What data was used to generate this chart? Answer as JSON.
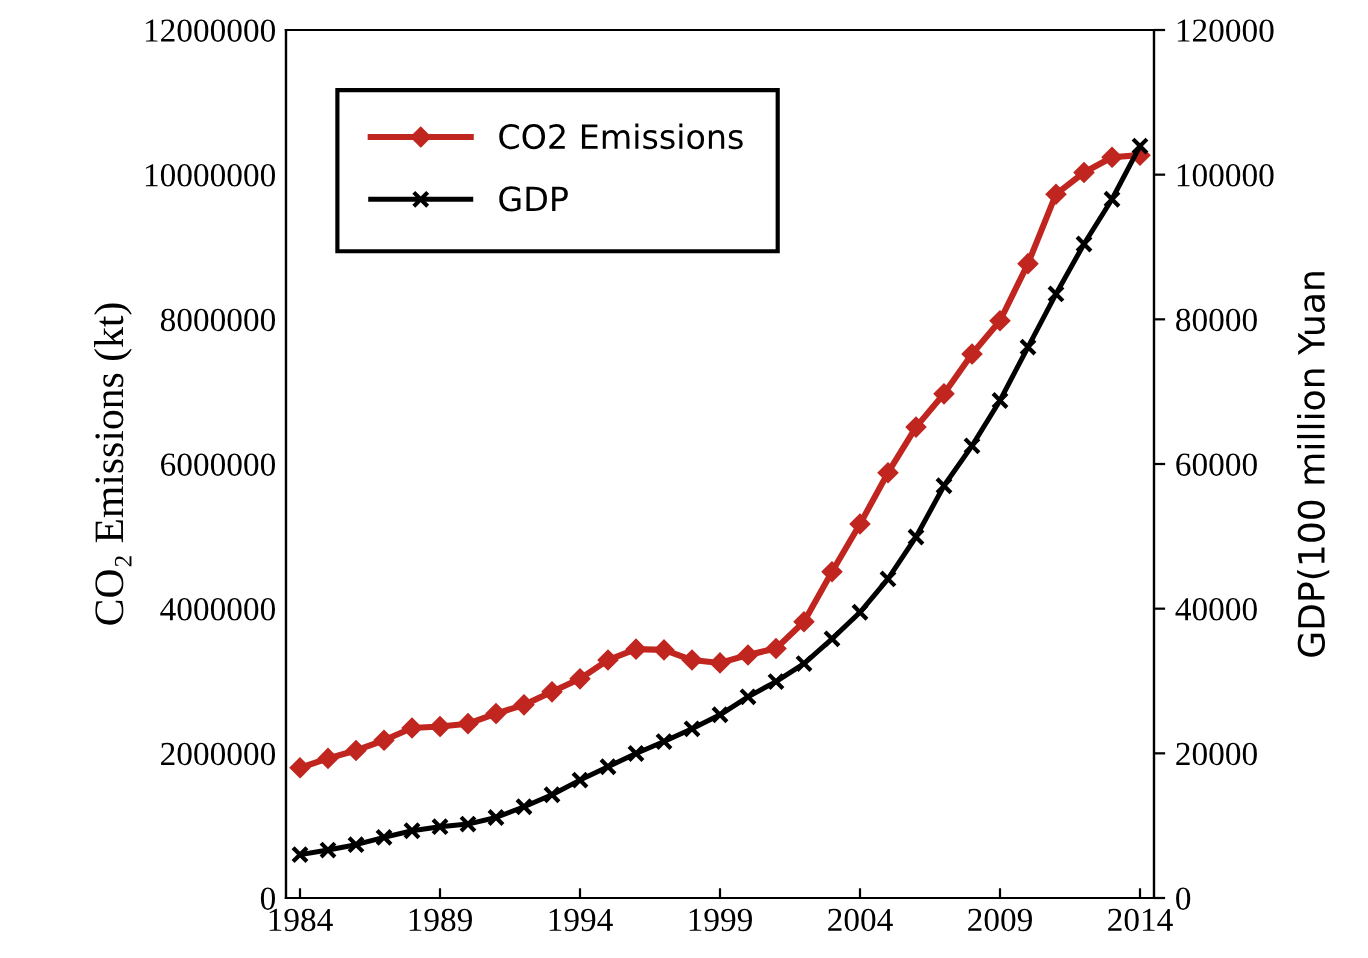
{
  "chart_data": {
    "type": "line",
    "ylabel": "CO₂ Emissions (kt)",
    "y2label": "GDP(100 million Yuan",
    "x": [
      1984,
      1985,
      1986,
      1987,
      1988,
      1989,
      1990,
      1991,
      1992,
      1993,
      1994,
      1995,
      1996,
      1997,
      1998,
      1999,
      2000,
      2001,
      2002,
      2003,
      2004,
      2005,
      2006,
      2007,
      2008,
      2009,
      2010,
      2011,
      2012,
      2013,
      2014
    ],
    "series": [
      {
        "name": "CO2 Emissions",
        "color": "#c0261f",
        "marker": "diamond",
        "values": [
          1800000,
          1930000,
          2040000,
          2180000,
          2350000,
          2370000,
          2410000,
          2550000,
          2670000,
          2850000,
          3030000,
          3290000,
          3440000,
          3430000,
          3290000,
          3250000,
          3360000,
          3450000,
          3820000,
          4510000,
          5170000,
          5880000,
          6510000,
          6970000,
          7520000,
          7980000,
          8770000,
          9730000,
          10030000,
          10240000,
          10270000
        ]
      },
      {
        "name": "GDP",
        "color": "#000000",
        "marker": "cross",
        "axis": "y2",
        "values": [
          6000,
          6630,
          7370,
          8380,
          9300,
          9860,
          10220,
          11130,
          12620,
          14280,
          16300,
          18150,
          19980,
          21630,
          23390,
          25330,
          27810,
          29920,
          32410,
          35830,
          39500,
          44110,
          49910,
          56990,
          62510,
          68780,
          76160,
          83510,
          90420,
          96600,
          103950
        ]
      }
    ],
    "xlim": [
      1983.5,
      2014.5
    ],
    "xticks": [
      1984,
      1989,
      1994,
      1999,
      2004,
      2009,
      2014
    ],
    "ylim": [
      0,
      12000000
    ],
    "yticks": [
      0,
      2000000,
      4000000,
      6000000,
      8000000,
      10000000,
      12000000
    ],
    "y2lim": [
      0,
      120000
    ],
    "y2ticks": [
      0,
      20000,
      40000,
      60000,
      80000,
      100000,
      120000
    ],
    "legend": "top left",
    "grid": false,
    "line_style": "solid"
  }
}
